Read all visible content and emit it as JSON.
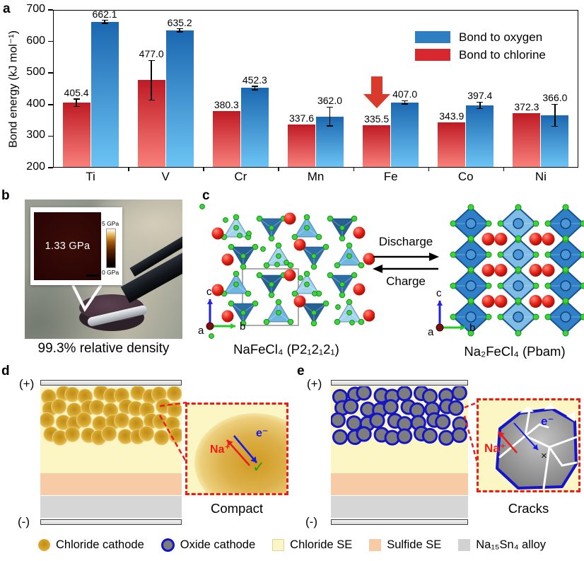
{
  "panel_labels": {
    "a": "a",
    "b": "b",
    "c": "c",
    "d": "d",
    "e": "e"
  },
  "chart_data": {
    "type": "bar",
    "title": "",
    "ylabel": "Bond energy (kJ mol⁻¹)",
    "categories": [
      "Ti",
      "V",
      "Cr",
      "Mn",
      "Fe",
      "Co",
      "Ni"
    ],
    "series": [
      {
        "name": "Bond to chlorine",
        "color_top": "#bf1a24",
        "color_bottom": "#f9807a",
        "values": [
          405.4,
          477.0,
          380.3,
          337.6,
          335.5,
          343.9,
          372.3
        ],
        "errors": [
          12,
          63,
          0,
          0,
          0,
          0,
          0
        ]
      },
      {
        "name": "Bond to oxygen",
        "color_top": "#1b67b0",
        "color_bottom": "#6cc4f4",
        "values": [
          662.1,
          635.2,
          452.3,
          362.0,
          407.0,
          397.4,
          366.0
        ],
        "errors": [
          5,
          5,
          6,
          30,
          5,
          10,
          35
        ]
      }
    ],
    "ylim": [
      200,
      700
    ],
    "yticks": [
      200,
      300,
      400,
      500,
      600,
      700
    ],
    "legend_position": "top-right",
    "grid": false,
    "legend": [
      {
        "label": "Bond to oxygen",
        "color": "#2e7fc1"
      },
      {
        "label": "Bond to chlorine",
        "color": "#d7282f"
      }
    ],
    "annotation": {
      "type": "down-arrow",
      "target_category": "Fe",
      "target_series": "Bond to chlorine",
      "color": "#d93a2c"
    }
  },
  "panel_b": {
    "inset_value": "1.33 GPa",
    "colorbar_top": "5 GPa",
    "colorbar_bottom": "0 GPa",
    "caption": "99.3% relative density"
  },
  "panel_c": {
    "left_caption": "NaFeCl₄ (P2₁2₁2₁)",
    "right_caption": "Na₂FeCl₄ (Pbam)",
    "forward_label": "Discharge",
    "backward_label": "Charge",
    "axis_labels": {
      "a": "a",
      "b": "b",
      "c": "c"
    }
  },
  "panel_d": {
    "plus": "(+)",
    "minus": "(-)",
    "na_label": "Na⁺",
    "e_label": "e⁻",
    "check": "✓",
    "inset_caption": "Compact"
  },
  "panel_e": {
    "plus": "(+)",
    "minus": "(-)",
    "na_label": "Na⁺",
    "e_label": "e⁻",
    "cross": "×",
    "inset_caption": "Cracks"
  },
  "bottom_legend": [
    {
      "label": "Chloride cathode",
      "swatch": "gold-circle"
    },
    {
      "label": "Oxide cathode",
      "swatch": "gray-circle-blue-ring"
    },
    {
      "label": "Chloride SE",
      "swatch": "pale-yellow-square",
      "color": "#fbf6c3"
    },
    {
      "label": "Sulfide SE",
      "swatch": "peach-square",
      "color": "#f7cba6"
    },
    {
      "label": "Na₁₅Sn₄ alloy",
      "swatch": "gray-square",
      "color": "#d2d2d2"
    }
  ]
}
